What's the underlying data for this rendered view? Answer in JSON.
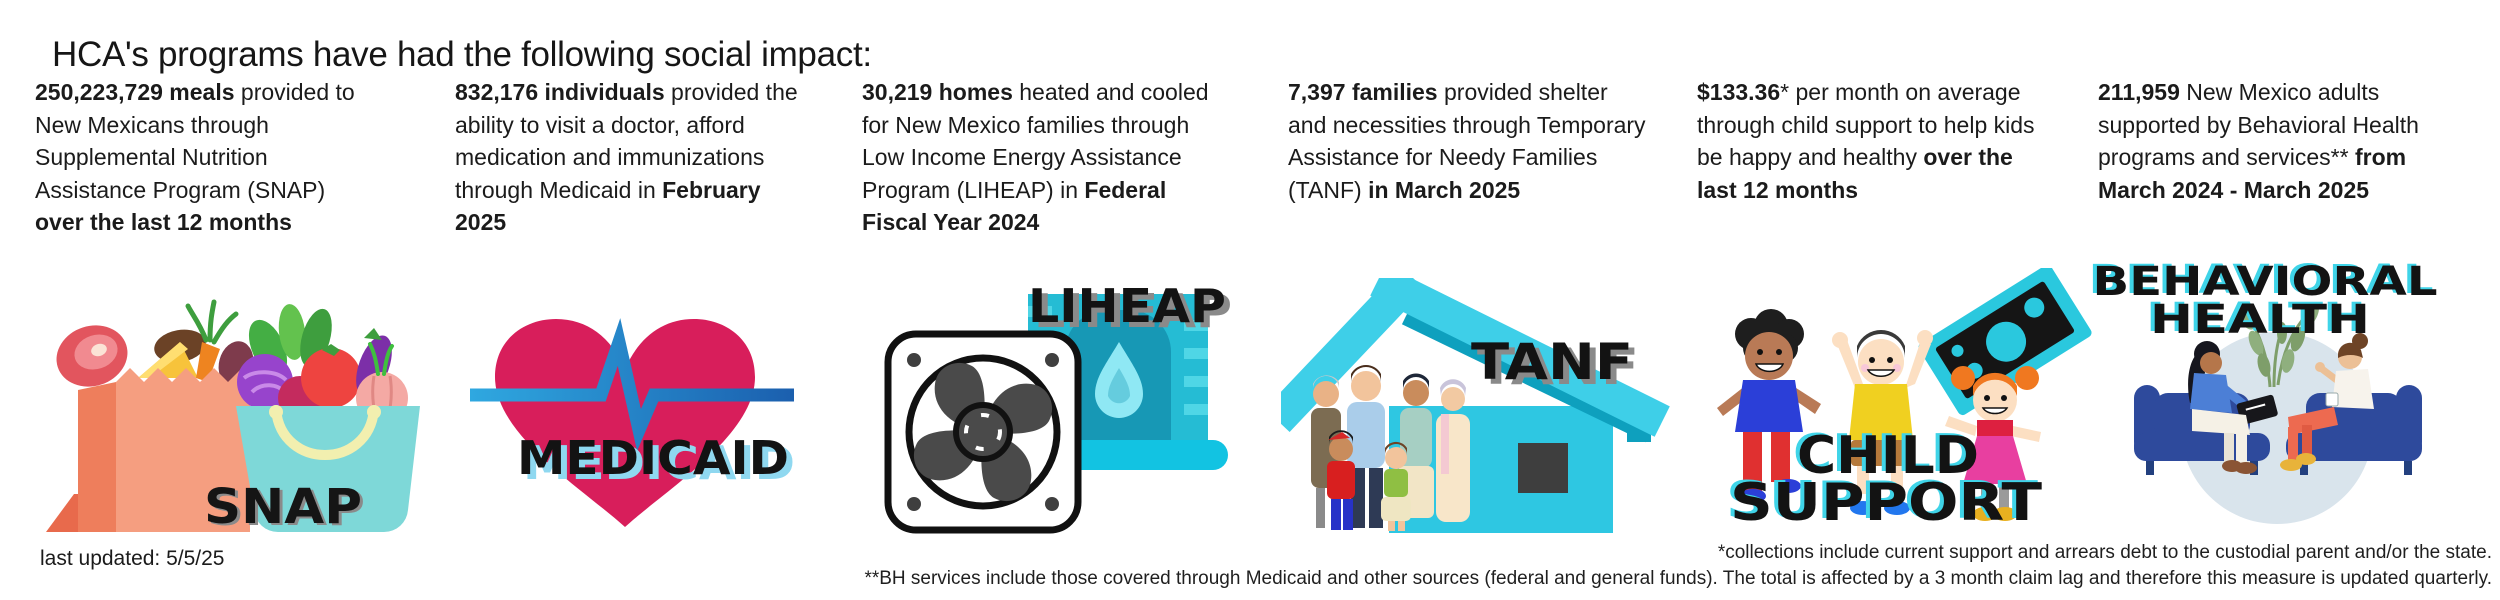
{
  "title": "HCA's programs have had the following social impact:",
  "cards": [
    {
      "program": "SNAP",
      "label": "SNAP",
      "segments": [
        {
          "text": "250,223,729 meals",
          "bold": true
        },
        {
          "text": " provided to New Mexicans through Supplemental Nutrition Assistance Program (SNAP) ",
          "bold": false
        },
        {
          "text": "over the last 12 months",
          "bold": true
        }
      ]
    },
    {
      "program": "Medicaid",
      "label": "MEDICAID",
      "segments": [
        {
          "text": "832,176 individuals",
          "bold": true
        },
        {
          "text": " provided the ability to visit a doctor, afford medication and immunizations through Medicaid in ",
          "bold": false
        },
        {
          "text": "February 2025",
          "bold": true
        }
      ]
    },
    {
      "program": "LIHEAP",
      "label": "LIHEAP",
      "segments": [
        {
          "text": "30,219 homes",
          "bold": true
        },
        {
          "text": " heated and cooled for New Mexico families through Low Income Energy Assistance Program (LIHEAP) in ",
          "bold": false
        },
        {
          "text": "Federal Fiscal Year 2024",
          "bold": true
        }
      ]
    },
    {
      "program": "TANF",
      "label": "TANF",
      "segments": [
        {
          "text": "7,397 families",
          "bold": true
        },
        {
          "text": " provided shelter and necessities through Temporary Assistance for Needy Families (TANF) ",
          "bold": false
        },
        {
          "text": "in March 2025",
          "bold": true
        }
      ]
    },
    {
      "program": "Child Support",
      "label_lines": [
        "CHILD",
        "SUPPORT"
      ],
      "segments": [
        {
          "text": "$133.36",
          "bold": true
        },
        {
          "text": "* per month on average through child support to help kids be happy and healthy ",
          "bold": false
        },
        {
          "text": "over the last 12 months",
          "bold": true
        }
      ]
    },
    {
      "program": "Behavioral Health",
      "label_lines": [
        "BEHAVIORAL",
        "HEALTH"
      ],
      "segments": [
        {
          "text": "211,959",
          "bold": true
        },
        {
          "text": " New Mexico adults supported by Behavioral Health programs and services** ",
          "bold": false
        },
        {
          "text": "from March 2024 - March 2025",
          "bold": true
        }
      ]
    }
  ],
  "footer": {
    "last_updated": "last updated: 5/5/25",
    "note_child_support": "*collections include current support and arrears debt to the custodial parent and/or the state.",
    "note_bh": "**BH services include those covered through Medicaid and other sources (federal and general funds). The total is affected by a 3 month claim lag and therefore this measure is updated quarterly."
  },
  "colors": {
    "text": "#1b1b1b",
    "snap_bag_salmon": "#F59E80",
    "snap_tote_teal": "#7ED8D8",
    "medicaid_heart": "#D81E5B",
    "medicaid_ekg_blue": "#2196D9",
    "liheap_teal": "#25BCD4",
    "tanf_house_cyan": "#2EC7E2",
    "money_teal": "#2AC8DE",
    "bh_couch_navy": "#2E4A9C",
    "label_black": "#131313",
    "label_cyan_shadow": "#3FD4E8"
  }
}
